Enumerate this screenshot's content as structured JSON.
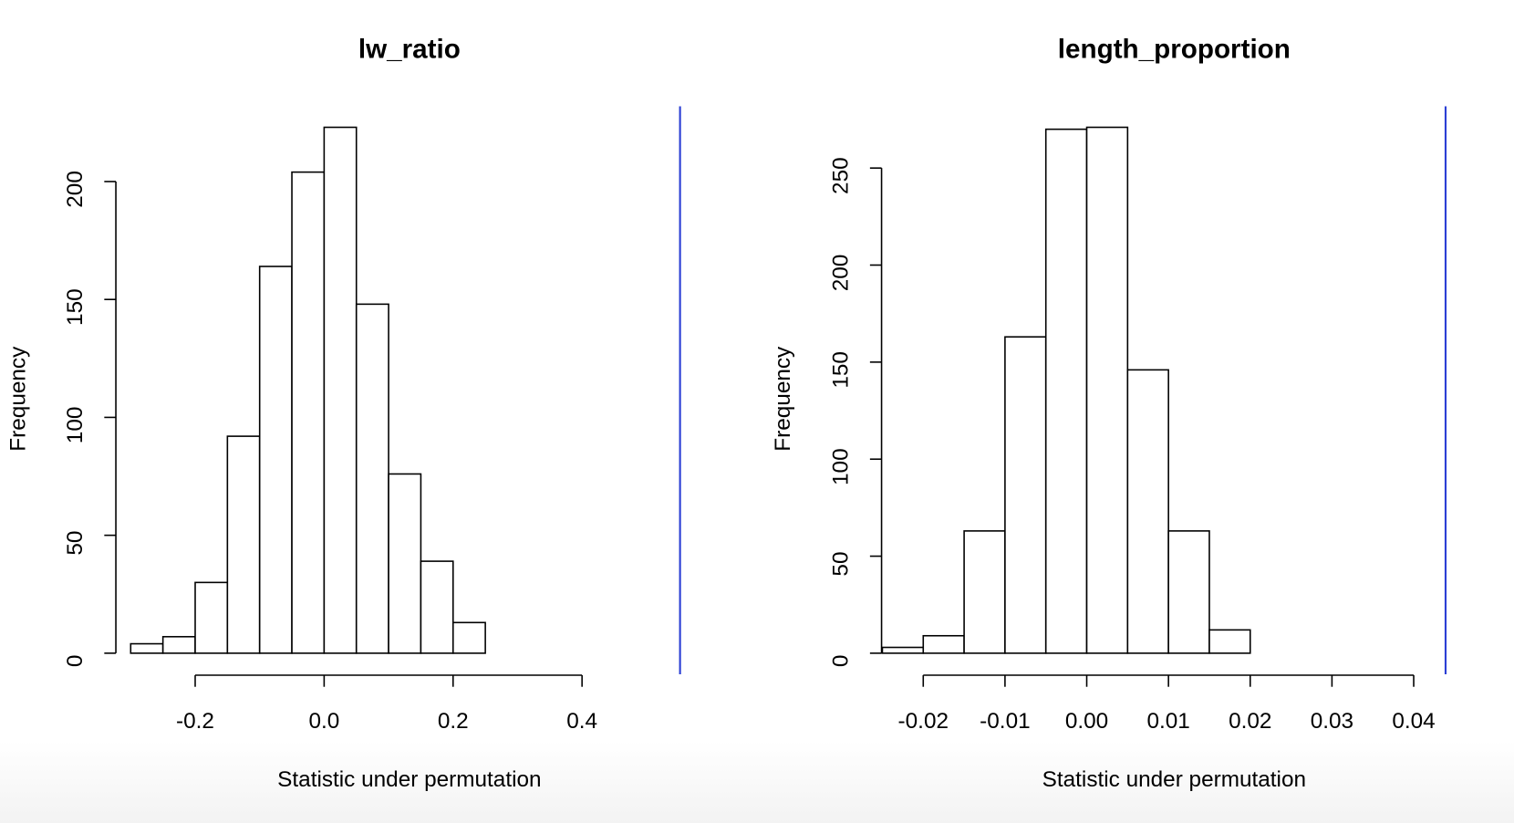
{
  "chart_data": [
    {
      "type": "histogram",
      "title": "lw_ratio",
      "xlabel": "Statistic under permutation",
      "ylabel": "Frequency",
      "bins": [
        -0.3,
        -0.25,
        -0.2,
        -0.15,
        -0.1,
        -0.05,
        0,
        0.05,
        0.1,
        0.15,
        0.2,
        0.25
      ],
      "values": [
        4,
        7,
        30,
        92,
        164,
        204,
        223,
        148,
        76,
        39,
        13
      ],
      "color": "#ffffff",
      "edgecolor": "#000000",
      "xlim": [
        -0.323,
        0.586
      ],
      "ylim": [
        -8.92,
        231.92
      ],
      "xticks": [
        -0.2,
        {
          "value": 0,
          "label": "0.0"
        },
        0.2,
        0.4
      ],
      "yticks": [
        0,
        50,
        100,
        150,
        200
      ],
      "vline": 0.552,
      "vline_color": "#2b3fd4"
    },
    {
      "type": "histogram",
      "title": "length_proportion",
      "xlabel": "Statistic under permutation",
      "ylabel": "Frequency",
      "bins": [
        -0.025,
        -0.02,
        -0.015,
        -0.01,
        -0.005,
        0,
        0.005,
        0.01,
        0.015,
        0.02
      ],
      "values": [
        3,
        9,
        63,
        163,
        270,
        271,
        146,
        63,
        12
      ],
      "color": "#ffffff",
      "edgecolor": "#000000",
      "xlim": [
        -0.0251,
        0.0466
      ],
      "ylim": [
        -10.84,
        281.84
      ],
      "xticks": [
        -0.02,
        -0.01,
        {
          "value": 0,
          "label": "0.00"
        },
        0.01,
        0.02,
        0.03,
        0.04
      ],
      "yticks": [
        0,
        50,
        100,
        150,
        200,
        250
      ],
      "vline": 0.0439,
      "vline_color": "#2b3fd4"
    }
  ]
}
